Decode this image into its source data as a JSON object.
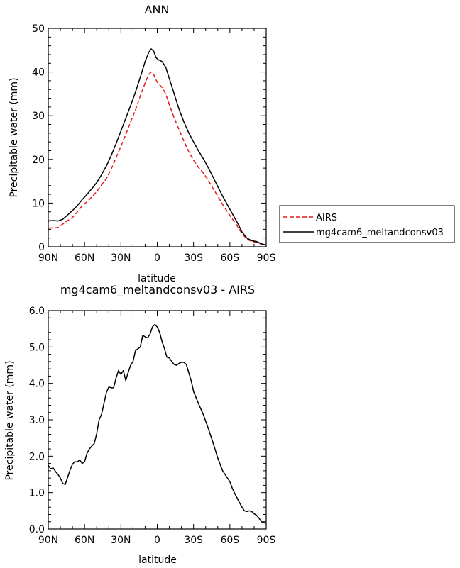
{
  "chart_data": [
    {
      "type": "line",
      "title": "ANN",
      "xlabel": "latitude",
      "ylabel": "Precipitable water (mm)",
      "ylim": [
        0,
        50
      ],
      "xlim": [
        90,
        -90
      ],
      "xticks": [
        90,
        60,
        30,
        0,
        -30,
        -60,
        -90
      ],
      "xtick_labels": [
        "90N",
        "60N",
        "30N",
        "0",
        "30S",
        "60S",
        "90S"
      ],
      "yticks": [
        0,
        10,
        20,
        30,
        40,
        50
      ],
      "ytick_labels": [
        "0",
        "10",
        "20",
        "30",
        "40",
        "50"
      ],
      "grid": false,
      "legend_position": "right",
      "series": [
        {
          "name": "AIRS",
          "color": "#e41a1c",
          "dash": "dashed",
          "points": [
            [
              90,
              4.3
            ],
            [
              86,
              4.3
            ],
            [
              82,
              4.4
            ],
            [
              78,
              5.2
            ],
            [
              74,
              6.0
            ],
            [
              70,
              6.7
            ],
            [
              66,
              8.0
            ],
            [
              62,
              9.4
            ],
            [
              58,
              10.3
            ],
            [
              54,
              11.4
            ],
            [
              50,
              12.6
            ],
            [
              46,
              14.2
            ],
            [
              42,
              15.6
            ],
            [
              38,
              17.8
            ],
            [
              34,
              20.4
            ],
            [
              30,
              23.0
            ],
            [
              26,
              25.7
            ],
            [
              22,
              28.6
            ],
            [
              18,
              31.3
            ],
            [
              14,
              34.5
            ],
            [
              10,
              37.5
            ],
            [
              7,
              39.5
            ],
            [
              5,
              40.0
            ],
            [
              3,
              39.5
            ],
            [
              1,
              38.2
            ],
            [
              -1,
              37.3
            ],
            [
              -4,
              36.5
            ],
            [
              -7,
              35.0
            ],
            [
              -10,
              32.5
            ],
            [
              -14,
              29.5
            ],
            [
              -18,
              26.8
            ],
            [
              -22,
              24.2
            ],
            [
              -26,
              21.8
            ],
            [
              -30,
              19.8
            ],
            [
              -34,
              18.2
            ],
            [
              -38,
              16.9
            ],
            [
              -42,
              15.3
            ],
            [
              -46,
              13.4
            ],
            [
              -50,
              11.6
            ],
            [
              -54,
              9.7
            ],
            [
              -58,
              8.0
            ],
            [
              -62,
              6.4
            ],
            [
              -66,
              4.8
            ],
            [
              -70,
              3.0
            ],
            [
              -74,
              1.8
            ],
            [
              -78,
              1.2
            ],
            [
              -82,
              1.0
            ],
            [
              -86,
              0.6
            ],
            [
              -90,
              0.3
            ]
          ]
        },
        {
          "name": "mg4cam6_meltandconsv03",
          "color": "#000000",
          "dash": "solid",
          "points": [
            [
              90,
              5.9
            ],
            [
              86,
              6.0
            ],
            [
              82,
              5.9
            ],
            [
              78,
              6.3
            ],
            [
              74,
              7.3
            ],
            [
              70,
              8.3
            ],
            [
              66,
              9.4
            ],
            [
              62,
              10.8
            ],
            [
              58,
              12.0
            ],
            [
              54,
              13.3
            ],
            [
              50,
              14.7
            ],
            [
              46,
              16.5
            ],
            [
              42,
              18.5
            ],
            [
              38,
              20.9
            ],
            [
              34,
              23.6
            ],
            [
              30,
              26.5
            ],
            [
              26,
              29.4
            ],
            [
              22,
              32.3
            ],
            [
              18,
              35.4
            ],
            [
              14,
              38.8
            ],
            [
              10,
              42.4
            ],
            [
              7,
              44.5
            ],
            [
              5,
              45.3
            ],
            [
              3,
              44.8
            ],
            [
              1,
              43.3
            ],
            [
              -1,
              42.8
            ],
            [
              -4,
              42.4
            ],
            [
              -7,
              41.1
            ],
            [
              -10,
              38.5
            ],
            [
              -14,
              35.0
            ],
            [
              -18,
              31.5
            ],
            [
              -22,
              28.6
            ],
            [
              -26,
              26.1
            ],
            [
              -30,
              24.0
            ],
            [
              -34,
              22.0
            ],
            [
              -38,
              20.2
            ],
            [
              -42,
              18.2
            ],
            [
              -46,
              16.0
            ],
            [
              -50,
              13.8
            ],
            [
              -54,
              11.6
            ],
            [
              -58,
              9.6
            ],
            [
              -62,
              7.6
            ],
            [
              -66,
              5.6
            ],
            [
              -70,
              3.4
            ],
            [
              -74,
              2.0
            ],
            [
              -78,
              1.4
            ],
            [
              -82,
              1.2
            ],
            [
              -86,
              0.7
            ],
            [
              -90,
              0.4
            ]
          ]
        }
      ]
    },
    {
      "type": "line",
      "title": "mg4cam6_meltandconsv03 - AIRS",
      "xlabel": "latitude",
      "ylabel": "Precipitable water (mm)",
      "ylim": [
        0,
        6
      ],
      "xlim": [
        90,
        -90
      ],
      "xticks": [
        90,
        60,
        30,
        0,
        -30,
        -60,
        -90
      ],
      "xtick_labels": [
        "90N",
        "60N",
        "30N",
        "0",
        "30S",
        "60S",
        "90S"
      ],
      "yticks": [
        0,
        1,
        2,
        3,
        4,
        5,
        6
      ],
      "ytick_labels": [
        "0.0",
        "1.0",
        "2.0",
        "3.0",
        "4.0",
        "5.0",
        "6.0"
      ],
      "grid": false,
      "series": [
        {
          "color": "#000000",
          "dash": "solid",
          "points": [
            [
              90,
              1.75
            ],
            [
              88,
              1.65
            ],
            [
              86,
              1.68
            ],
            [
              84,
              1.58
            ],
            [
              82,
              1.5
            ],
            [
              80,
              1.4
            ],
            [
              78,
              1.25
            ],
            [
              76,
              1.22
            ],
            [
              74,
              1.42
            ],
            [
              72,
              1.62
            ],
            [
              70,
              1.78
            ],
            [
              68,
              1.85
            ],
            [
              66,
              1.84
            ],
            [
              64,
              1.9
            ],
            [
              62,
              1.8
            ],
            [
              60,
              1.85
            ],
            [
              58,
              2.08
            ],
            [
              56,
              2.2
            ],
            [
              54,
              2.28
            ],
            [
              52,
              2.35
            ],
            [
              50,
              2.62
            ],
            [
              48,
              3.0
            ],
            [
              46,
              3.15
            ],
            [
              44,
              3.45
            ],
            [
              42,
              3.75
            ],
            [
              40,
              3.9
            ],
            [
              38,
              3.88
            ],
            [
              36,
              3.88
            ],
            [
              34,
              4.15
            ],
            [
              32,
              4.35
            ],
            [
              30,
              4.25
            ],
            [
              28,
              4.35
            ],
            [
              26,
              4.08
            ],
            [
              24,
              4.3
            ],
            [
              22,
              4.5
            ],
            [
              20,
              4.6
            ],
            [
              18,
              4.9
            ],
            [
              16,
              4.95
            ],
            [
              14,
              5.0
            ],
            [
              12,
              5.32
            ],
            [
              10,
              5.28
            ],
            [
              8,
              5.25
            ],
            [
              6,
              5.35
            ],
            [
              4,
              5.55
            ],
            [
              2,
              5.62
            ],
            [
              0,
              5.55
            ],
            [
              -2,
              5.4
            ],
            [
              -4,
              5.15
            ],
            [
              -6,
              4.95
            ],
            [
              -8,
              4.72
            ],
            [
              -10,
              4.7
            ],
            [
              -12,
              4.6
            ],
            [
              -14,
              4.52
            ],
            [
              -16,
              4.5
            ],
            [
              -18,
              4.55
            ],
            [
              -20,
              4.58
            ],
            [
              -22,
              4.58
            ],
            [
              -24,
              4.52
            ],
            [
              -26,
              4.3
            ],
            [
              -28,
              4.08
            ],
            [
              -30,
              3.78
            ],
            [
              -34,
              3.45
            ],
            [
              -38,
              3.15
            ],
            [
              -42,
              2.78
            ],
            [
              -46,
              2.38
            ],
            [
              -50,
              1.95
            ],
            [
              -54,
              1.6
            ],
            [
              -58,
              1.4
            ],
            [
              -60,
              1.3
            ],
            [
              -62,
              1.12
            ],
            [
              -64,
              0.98
            ],
            [
              -66,
              0.85
            ],
            [
              -68,
              0.72
            ],
            [
              -70,
              0.6
            ],
            [
              -72,
              0.5
            ],
            [
              -74,
              0.48
            ],
            [
              -76,
              0.5
            ],
            [
              -78,
              0.48
            ],
            [
              -80,
              0.42
            ],
            [
              -82,
              0.38
            ],
            [
              -84,
              0.3
            ],
            [
              -86,
              0.2
            ],
            [
              -88,
              0.18
            ],
            [
              -90,
              0.15
            ]
          ]
        }
      ]
    }
  ]
}
